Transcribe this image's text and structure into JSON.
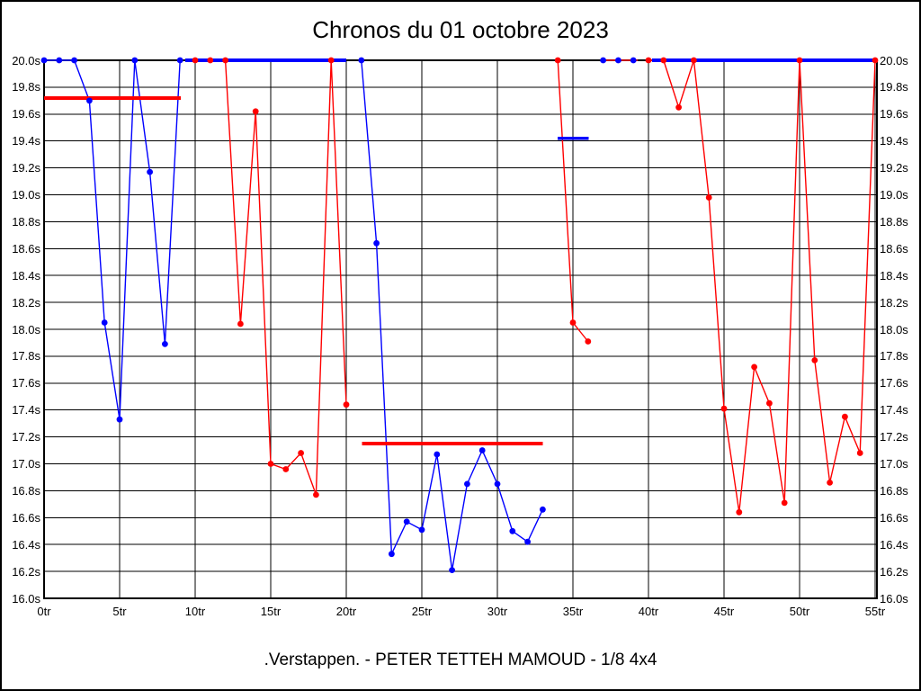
{
  "page": {
    "title": "Chronos du 01 octobre 2023",
    "footer": ".Verstappen. - PETER TETTEH MAMOUD - 1/8 4x4"
  },
  "colors": {
    "blue": "#0000ff",
    "red": "#ff0000",
    "grid": "#000000",
    "background": "#ffffff"
  },
  "chart_data": {
    "type": "line",
    "title": "Chronos du 01 octobre 2023",
    "subtitle": ".Verstappen. - PETER TETTEH MAMOUD - 1/8 4x4",
    "x_unit": "tr",
    "y_unit": "s",
    "xlim": [
      0,
      55.12
    ],
    "ylim": [
      16.0,
      20.0
    ],
    "x_tick_step": 5,
    "y_tick_step": 0.2,
    "grid": true,
    "legend": "none",
    "x_tick_labels": [
      "0tr",
      "5tr",
      "10tr",
      "15tr",
      "20tr",
      "25tr",
      "30tr",
      "35tr",
      "40tr",
      "45tr",
      "50tr",
      "55tr"
    ],
    "y_tick_labels": [
      "20.0s",
      "19.8s",
      "19.6s",
      "19.4s",
      "19.2s",
      "19.0s",
      "18.8s",
      "18.6s",
      "18.4s",
      "18.2s",
      "18.0s",
      "17.8s",
      "17.6s",
      "17.4s",
      "17.2s",
      "17.0s",
      "16.8s",
      "16.6s",
      "16.4s",
      "16.2s",
      "16.0s"
    ],
    "series": [
      {
        "name": "red-driver",
        "color": "#ff0000",
        "segments": [
          {
            "line": true,
            "dots": true,
            "points": [
              [
                10,
                20.0
              ],
              [
                11,
                20.0
              ],
              [
                12,
                20.0
              ],
              [
                13,
                18.04
              ],
              [
                14,
                19.62
              ],
              [
                15,
                17.0
              ],
              [
                16,
                16.96
              ],
              [
                17,
                17.08
              ],
              [
                18,
                16.77
              ],
              [
                19,
                20.0
              ],
              [
                20,
                17.44
              ]
            ]
          },
          {
            "line": true,
            "dots": true,
            "points": [
              [
                34,
                20.0
              ],
              [
                35,
                18.05
              ],
              [
                36,
                17.91
              ]
            ]
          },
          {
            "line": true,
            "dots": false,
            "points": [
              [
                37.2,
                20.0
              ],
              [
                39.3,
                20.0
              ]
            ]
          },
          {
            "line": true,
            "dots": true,
            "points": [
              [
                40,
                20.0
              ],
              [
                41,
                20.0
              ],
              [
                42,
                19.65
              ],
              [
                43,
                20.0
              ],
              [
                44,
                18.98
              ],
              [
                45,
                17.41
              ],
              [
                46,
                16.64
              ],
              [
                47,
                17.72
              ],
              [
                48,
                17.45
              ],
              [
                49,
                16.71
              ],
              [
                50,
                20.0
              ],
              [
                51,
                17.77
              ],
              [
                52,
                16.86
              ],
              [
                53,
                17.35
              ],
              [
                54,
                17.08
              ],
              [
                55,
                20.0
              ]
            ]
          }
        ],
        "marker_lines": [
          {
            "y": 19.72,
            "x_from": 0.0,
            "x_to": 9.05
          },
          {
            "y": 17.15,
            "x_from": 21.05,
            "x_to": 33.0
          }
        ]
      },
      {
        "name": "blue-driver",
        "color": "#0000ff",
        "segments": [
          {
            "line": true,
            "dots": true,
            "points": [
              [
                0,
                20.0
              ],
              [
                1,
                20.0
              ],
              [
                2,
                20.0
              ],
              [
                3,
                19.7
              ],
              [
                4,
                18.05
              ],
              [
                5,
                17.33
              ],
              [
                6,
                20.0
              ],
              [
                7,
                19.17
              ],
              [
                8,
                17.89
              ],
              [
                9,
                20.0
              ]
            ]
          },
          {
            "line": true,
            "dots": true,
            "points": [
              [
                21,
                20.0
              ],
              [
                22,
                18.64
              ],
              [
                23,
                16.33
              ],
              [
                24,
                16.57
              ],
              [
                25,
                16.51
              ],
              [
                26,
                17.07
              ],
              [
                27,
                16.21
              ],
              [
                28,
                16.85
              ],
              [
                29,
                17.1
              ],
              [
                30,
                16.85
              ],
              [
                31,
                16.5
              ],
              [
                32,
                16.42
              ],
              [
                33,
                16.66
              ]
            ]
          },
          {
            "line": false,
            "dots": true,
            "points": [
              [
                37,
                20.0
              ],
              [
                38,
                20.0
              ],
              [
                39,
                20.0
              ]
            ]
          }
        ],
        "marker_lines": [
          {
            "y": 20.0,
            "x_from": 9.35,
            "x_to": 20.0
          },
          {
            "y": 19.42,
            "x_from": 34.0,
            "x_to": 36.05
          },
          {
            "y": 20.0,
            "x_from": 40.25,
            "x_to": 55.12
          }
        ]
      }
    ]
  }
}
